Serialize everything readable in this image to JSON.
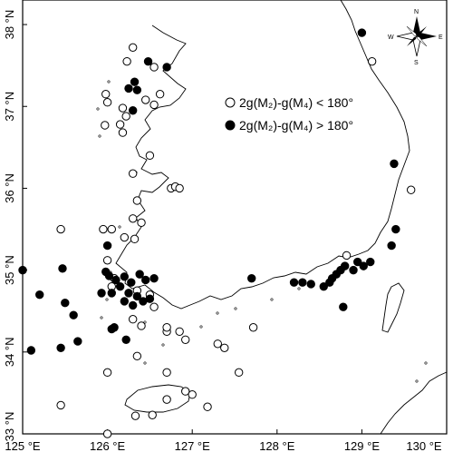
{
  "map": {
    "lon_ticks": [
      {
        "value": 125,
        "label": "125 °E"
      },
      {
        "value": 126,
        "label": "126 °E"
      },
      {
        "value": 127,
        "label": "127 °E"
      },
      {
        "value": 128,
        "label": "128 °E"
      },
      {
        "value": 129,
        "label": "129 °E"
      },
      {
        "value": 130,
        "label": "130 °E"
      }
    ],
    "lat_ticks": [
      {
        "value": 33,
        "label": "33 °N"
      },
      {
        "value": 34,
        "label": "34 °N"
      },
      {
        "value": 35,
        "label": "35 °N"
      },
      {
        "value": 36,
        "label": "36 °N"
      },
      {
        "value": 37,
        "label": "37 °N"
      },
      {
        "value": 38,
        "label": "38 °N"
      }
    ],
    "compass": {
      "n": "N",
      "s": "S",
      "e": "E",
      "w": "W"
    },
    "legend": [
      {
        "label": "2g(M₂)-g(M₄) < 180°",
        "marker": "open-circle"
      },
      {
        "label": "2g(M₂)-g(M₄) > 180°",
        "marker": "filled-circle"
      }
    ],
    "stations_open": [
      [
        126.3,
        37.72
      ],
      [
        126.23,
        37.55
      ],
      [
        126.55,
        37.48
      ],
      [
        125.98,
        37.15
      ],
      [
        126.0,
        37.05
      ],
      [
        126.22,
        36.88
      ],
      [
        126.15,
        36.78
      ],
      [
        125.97,
        36.77
      ],
      [
        126.45,
        37.08
      ],
      [
        126.55,
        37.02
      ],
      [
        126.62,
        37.15
      ],
      [
        126.18,
        36.68
      ],
      [
        126.18,
        36.98
      ],
      [
        126.5,
        36.4
      ],
      [
        126.3,
        36.18
      ],
      [
        126.35,
        35.85
      ],
      [
        126.75,
        36.0
      ],
      [
        126.8,
        36.02
      ],
      [
        126.85,
        36.0
      ],
      [
        126.3,
        35.63
      ],
      [
        125.95,
        35.5
      ],
      [
        126.05,
        35.5
      ],
      [
        125.45,
        35.5
      ],
      [
        126.2,
        35.4
      ],
      [
        126.32,
        35.38
      ],
      [
        126.4,
        35.58
      ],
      [
        126.0,
        35.12
      ],
      [
        126.08,
        34.9
      ],
      [
        126.35,
        34.75
      ],
      [
        126.5,
        34.7
      ],
      [
        126.55,
        34.55
      ],
      [
        126.3,
        34.4
      ],
      [
        126.4,
        34.32
      ],
      [
        126.7,
        34.25
      ],
      [
        126.7,
        34.3
      ],
      [
        126.92,
        34.15
      ],
      [
        126.35,
        33.95
      ],
      [
        126.7,
        33.75
      ],
      [
        126.0,
        33.75
      ],
      [
        127.3,
        34.1
      ],
      [
        127.38,
        34.05
      ],
      [
        127.18,
        33.33
      ],
      [
        126.7,
        33.42
      ],
      [
        126.92,
        33.52
      ],
      [
        127.0,
        33.48
      ],
      [
        126.33,
        33.22
      ],
      [
        126.53,
        33.23
      ],
      [
        125.45,
        33.35
      ],
      [
        126.0,
        33.0
      ],
      [
        127.72,
        34.3
      ],
      [
        127.55,
        33.75
      ],
      [
        128.82,
        35.18
      ],
      [
        129.58,
        35.98
      ],
      [
        129.12,
        37.55
      ],
      [
        126.85,
        34.25
      ],
      [
        126.05,
        34.8
      ]
    ],
    "stations_filled": [
      [
        126.48,
        37.55
      ],
      [
        126.7,
        37.48
      ],
      [
        126.25,
        37.22
      ],
      [
        126.35,
        37.2
      ],
      [
        126.3,
        36.95
      ],
      [
        125.98,
        34.98
      ],
      [
        126.02,
        34.93
      ],
      [
        126.1,
        34.88
      ],
      [
        126.2,
        34.92
      ],
      [
        126.28,
        34.85
      ],
      [
        126.38,
        34.95
      ],
      [
        126.45,
        34.88
      ],
      [
        125.93,
        34.72
      ],
      [
        126.05,
        34.72
      ],
      [
        126.15,
        34.8
      ],
      [
        126.25,
        34.72
      ],
      [
        126.35,
        34.68
      ],
      [
        126.42,
        34.62
      ],
      [
        126.5,
        34.65
      ],
      [
        126.3,
        34.57
      ],
      [
        126.2,
        34.62
      ],
      [
        126.55,
        34.9
      ],
      [
        125.47,
        35.02
      ],
      [
        125.0,
        35.0
      ],
      [
        125.2,
        34.7
      ],
      [
        125.5,
        34.6
      ],
      [
        125.6,
        34.45
      ],
      [
        125.45,
        34.05
      ],
      [
        125.1,
        34.02
      ],
      [
        125.65,
        34.13
      ],
      [
        126.08,
        34.3
      ],
      [
        126.05,
        34.28
      ],
      [
        126.22,
        34.15
      ],
      [
        126.0,
        35.3
      ],
      [
        127.7,
        34.9
      ],
      [
        128.2,
        34.85
      ],
      [
        128.3,
        34.85
      ],
      [
        128.4,
        34.83
      ],
      [
        128.55,
        34.8
      ],
      [
        128.62,
        34.85
      ],
      [
        128.65,
        34.9
      ],
      [
        128.7,
        34.95
      ],
      [
        128.8,
        35.05
      ],
      [
        128.9,
        35.0
      ],
      [
        129.02,
        35.05
      ],
      [
        129.1,
        35.1
      ],
      [
        128.75,
        35.0
      ],
      [
        128.95,
        35.1
      ],
      [
        129.35,
        35.3
      ],
      [
        129.4,
        35.5
      ],
      [
        129.38,
        36.3
      ],
      [
        129.0,
        37.9
      ],
      [
        128.78,
        34.55
      ],
      [
        126.32,
        37.3
      ]
    ]
  }
}
